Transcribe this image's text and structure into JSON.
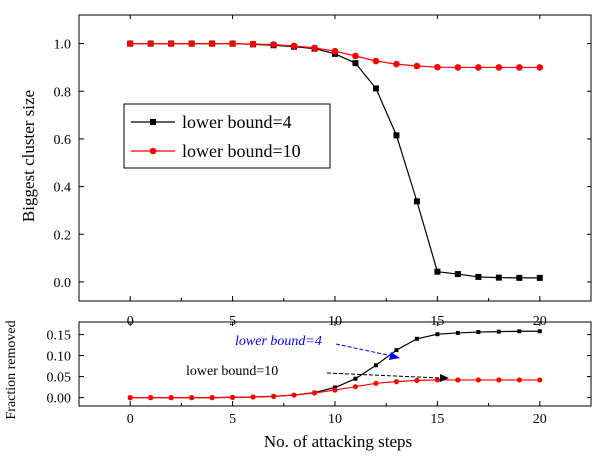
{
  "chart_data": [
    {
      "type": "line",
      "panel": "top",
      "xlim": [
        -2.5,
        22.5
      ],
      "ylim": [
        -0.08,
        1.12
      ],
      "x_ticks": [
        "0",
        "5",
        "10",
        "15",
        "20"
      ],
      "y_ticks": [
        "0.0",
        "0.2",
        "0.4",
        "0.6",
        "0.8",
        "1.0"
      ],
      "xlabel": "",
      "ylabel": "Biggest cluster size",
      "grid": false,
      "legend_position": "center-left",
      "x": [
        0,
        1,
        2,
        3,
        4,
        5,
        6,
        7,
        8,
        9,
        10,
        11,
        12,
        13,
        14,
        15,
        16,
        17,
        18,
        19,
        20
      ],
      "series": [
        {
          "name": "lower bound=4",
          "color": "#000000",
          "marker": "square",
          "values": [
            1.0,
            1.0,
            1.0,
            1.0,
            1.0,
            1.0,
            0.997,
            0.993,
            0.987,
            0.979,
            0.957,
            0.918,
            0.812,
            0.615,
            0.338,
            0.043,
            0.033,
            0.021,
            0.018,
            0.017,
            0.017
          ]
        },
        {
          "name": "lower bound=10",
          "color": "#ff0000",
          "marker": "circle",
          "values": [
            1.0,
            1.0,
            1.0,
            1.0,
            1.0,
            1.0,
            0.998,
            0.996,
            0.99,
            0.982,
            0.968,
            0.948,
            0.927,
            0.914,
            0.906,
            0.901,
            0.9,
            0.9,
            0.9,
            0.9,
            0.9
          ]
        }
      ]
    },
    {
      "type": "line",
      "panel": "bottom",
      "xlim": [
        -2.5,
        22.5
      ],
      "ylim": [
        -0.02,
        0.18
      ],
      "x_ticks": [
        "0",
        "5",
        "10",
        "15",
        "20"
      ],
      "y_ticks": [
        "0.00",
        "0.05",
        "0.10",
        "0.15"
      ],
      "xlabel": "No. of attacking steps",
      "ylabel": "Fraction removed",
      "grid": false,
      "x": [
        0,
        1,
        2,
        3,
        4,
        5,
        6,
        7,
        8,
        9,
        10,
        11,
        12,
        13,
        14,
        15,
        16,
        17,
        18,
        19,
        20
      ],
      "series": [
        {
          "name": "lower bound=4",
          "color": "#000000",
          "marker": "square",
          "values": [
            0.0,
            0.0,
            0.0,
            0.0,
            0.0,
            0.0005,
            0.0015,
            0.003,
            0.006,
            0.012,
            0.024,
            0.045,
            0.077,
            0.113,
            0.14,
            0.151,
            0.154,
            0.156,
            0.157,
            0.158,
            0.158
          ]
        },
        {
          "name": "lower bound=10",
          "color": "#ff0000",
          "marker": "circle",
          "values": [
            0.0,
            0.0,
            0.0,
            0.0,
            0.0,
            0.0005,
            0.0015,
            0.003,
            0.006,
            0.011,
            0.018,
            0.026,
            0.034,
            0.038,
            0.041,
            0.042,
            0.042,
            0.042,
            0.042,
            0.042,
            0.042
          ]
        }
      ],
      "annotations": [
        {
          "text": "lower bound=4",
          "color": "#0000ff",
          "arrow_to": [
            13,
            0.113
          ]
        },
        {
          "text": "lower bound=10",
          "color": "#000000",
          "arrow_to": [
            14.5,
            0.041
          ]
        }
      ]
    }
  ]
}
